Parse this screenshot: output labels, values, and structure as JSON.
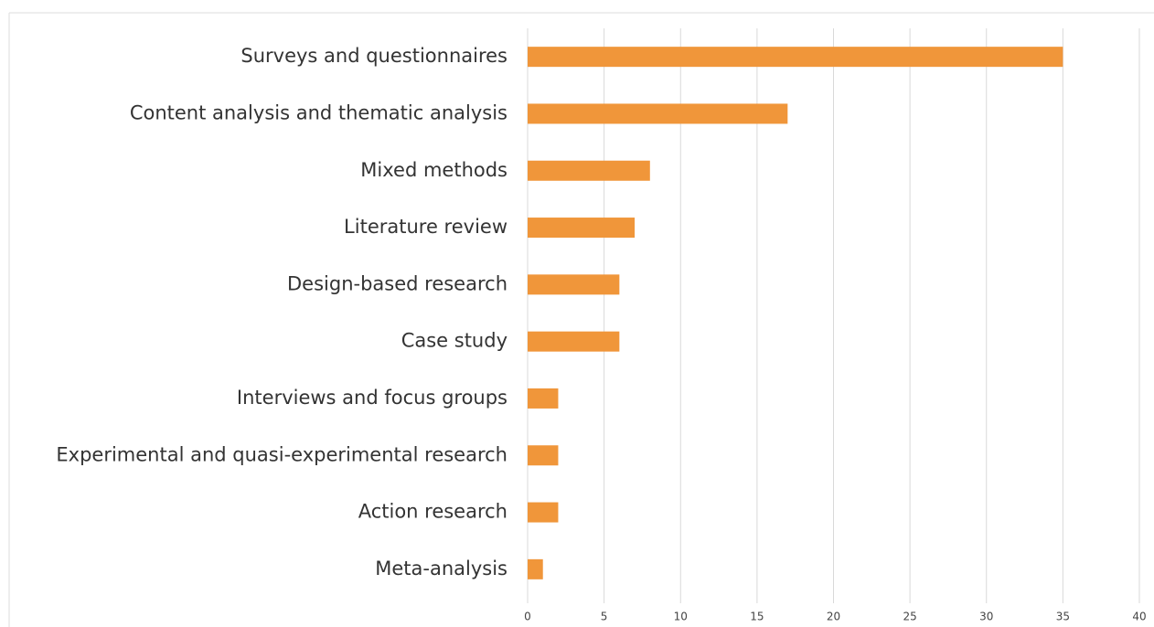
{
  "chart_data": {
    "type": "bar",
    "orientation": "horizontal",
    "categories": [
      "Surveys and questionnaires",
      "Content analysis and thematic analysis",
      "Mixed methods",
      "Literature review",
      "Design-based research",
      "Case study",
      "Interviews and focus groups",
      "Experimental and quasi-experimental research",
      "Action research",
      "Meta-analysis"
    ],
    "values": [
      35,
      17,
      8,
      7,
      6,
      6,
      2,
      2,
      2,
      1
    ],
    "color": "#f0963a",
    "xlim": [
      0,
      40
    ],
    "xticks": [
      0,
      5,
      10,
      15,
      20,
      25,
      30,
      35,
      40
    ],
    "grid": true
  }
}
